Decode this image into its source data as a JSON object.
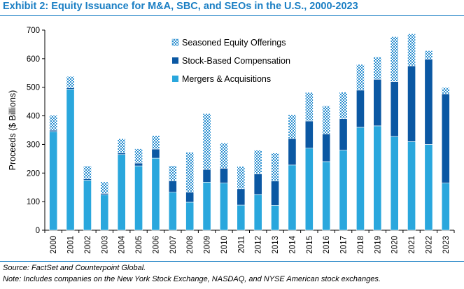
{
  "header": {
    "title": "Exhibit 2: Equity Issuance for M&A, SBC, and SEOs in the U.S., 2000-2023"
  },
  "chart_data": {
    "type": "bar",
    "stacked": true,
    "title": "Exhibit 2: Equity Issuance for M&A, SBC, and SEOs in the U.S., 2000-2023",
    "xlabel": "",
    "ylabel": "Proceeds ($ Billions)",
    "ylim": [
      0,
      700
    ],
    "yticks": [
      0,
      100,
      200,
      300,
      400,
      500,
      600,
      700
    ],
    "grid": false,
    "legend_position": "top-left",
    "categories": [
      "2000",
      "2001",
      "2002",
      "2003",
      "2004",
      "2005",
      "2006",
      "2007",
      "2008",
      "2009",
      "2010",
      "2011",
      "2012",
      "2013",
      "2014",
      "2015",
      "2016",
      "2017",
      "2018",
      "2019",
      "2020",
      "2021",
      "2022",
      "2023"
    ],
    "series": [
      {
        "name": "Mergers & Acquisitions",
        "color": "#2aa7dd",
        "pattern": "solid",
        "values": [
          345,
          493,
          175,
          124,
          265,
          225,
          252,
          133,
          98,
          168,
          165,
          88,
          125,
          87,
          228,
          287,
          240,
          280,
          360,
          365,
          328,
          310,
          300,
          165
        ]
      },
      {
        "name": "Stock-Based Compensation",
        "color": "#0b58a3",
        "pattern": "solid",
        "values": [
          5,
          5,
          5,
          5,
          5,
          10,
          32,
          40,
          35,
          45,
          52,
          57,
          72,
          85,
          93,
          95,
          97,
          110,
          130,
          163,
          192,
          265,
          298,
          312
        ]
      },
      {
        "name": "Seasoned Equity Offerings",
        "color": "#5aa8d8",
        "pattern": "checkered",
        "values": [
          52,
          40,
          45,
          40,
          50,
          50,
          47,
          53,
          140,
          195,
          88,
          78,
          83,
          98,
          83,
          100,
          98,
          93,
          90,
          78,
          157,
          112,
          30,
          22
        ]
      }
    ]
  },
  "footnotes": {
    "source": "Source: FactSet and Counterpoint Global.",
    "note": "Note: Includes companies on the New York Stock Exchange, NASDAQ, and NYSE American stock exchanges."
  }
}
